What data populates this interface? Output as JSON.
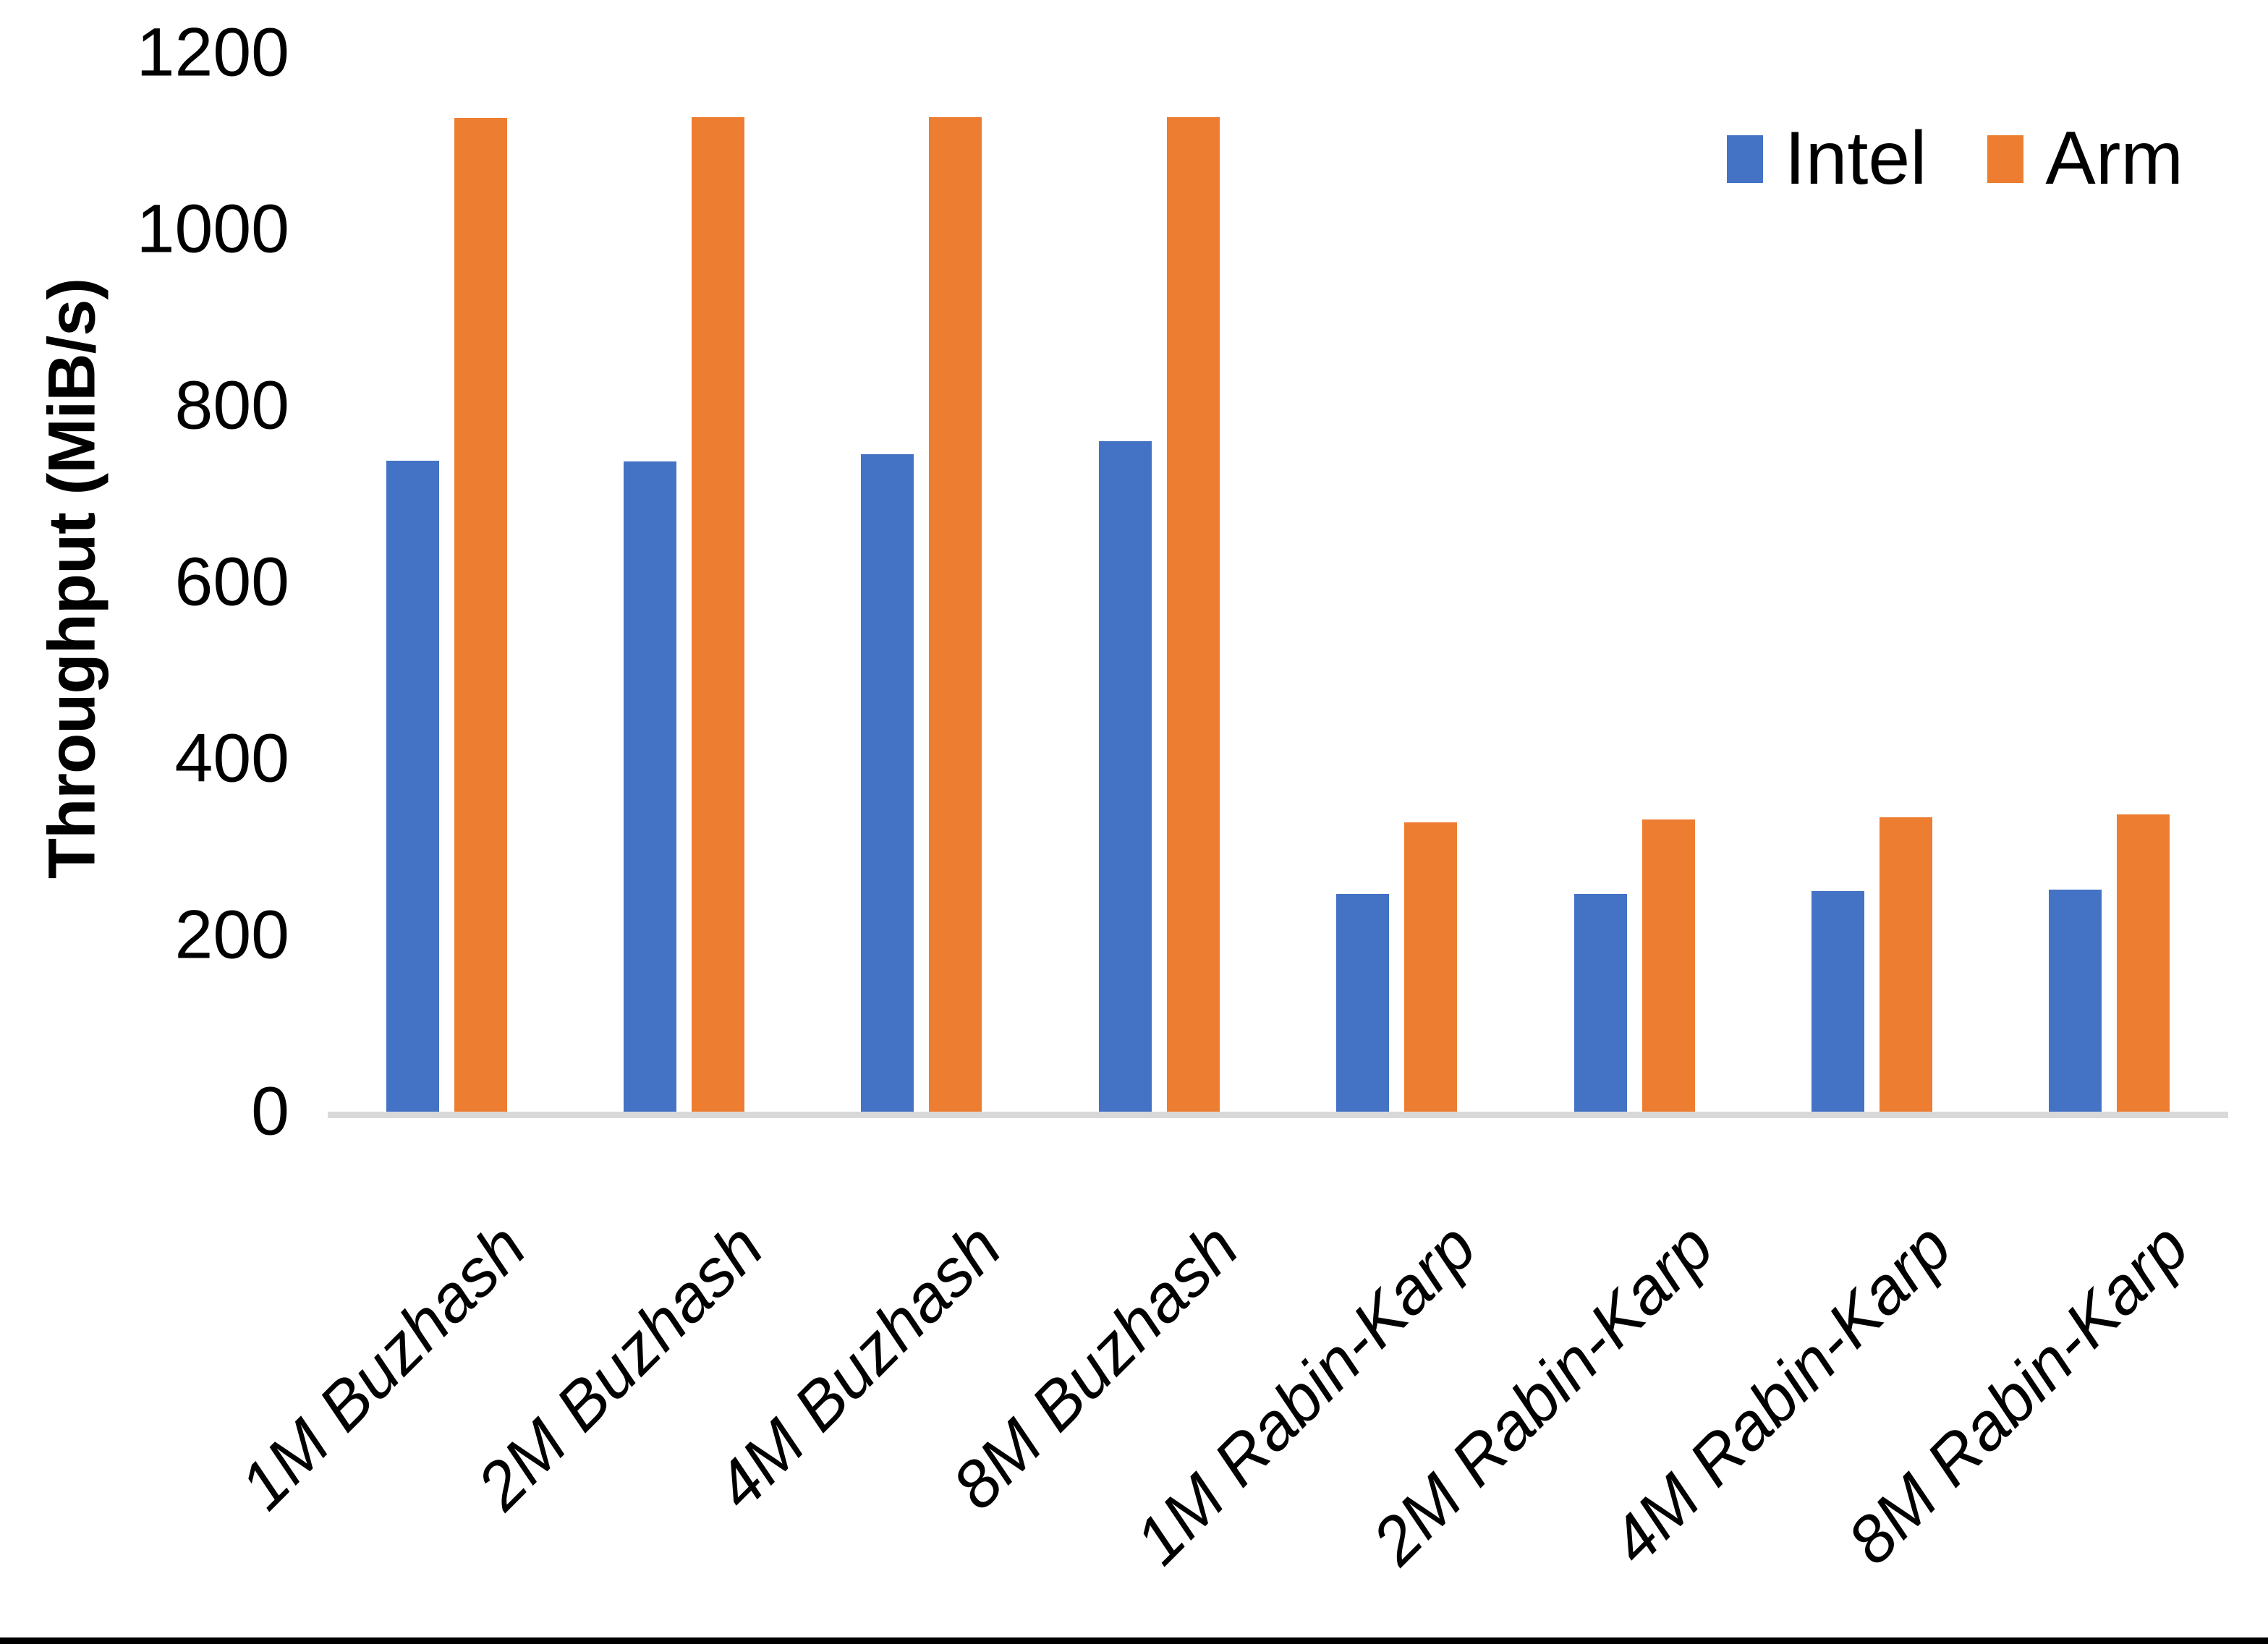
{
  "chart_data": {
    "type": "bar",
    "title": "",
    "xlabel": "",
    "ylabel": "Throughput (MiB/s)",
    "ylim": [
      0,
      1200
    ],
    "yticks": [
      0,
      200,
      400,
      600,
      800,
      1000,
      1200
    ],
    "grid": false,
    "legend_position": "top-right",
    "categories": [
      "1M Buzhash",
      "2M Buzhash",
      "4M Buzhash",
      "8M Buzhash",
      "1M Rabin-Karp",
      "2M Rabin-Karp",
      "4M Rabin-Karp",
      "8M Rabin-Karp"
    ],
    "series": [
      {
        "name": "Intel",
        "color": "#4472C4",
        "values": [
          738,
          737,
          745,
          760,
          247,
          247,
          250,
          252
        ]
      },
      {
        "name": "Arm",
        "color": "#ED7D31",
        "values": [
          1126,
          1127,
          1127,
          1127,
          328,
          331,
          334,
          337
        ]
      }
    ]
  },
  "colors": {
    "axis_line": "#D9D9D9",
    "text": "#000000",
    "background": "#FFFFFF",
    "bottom_strip": "#000000"
  }
}
